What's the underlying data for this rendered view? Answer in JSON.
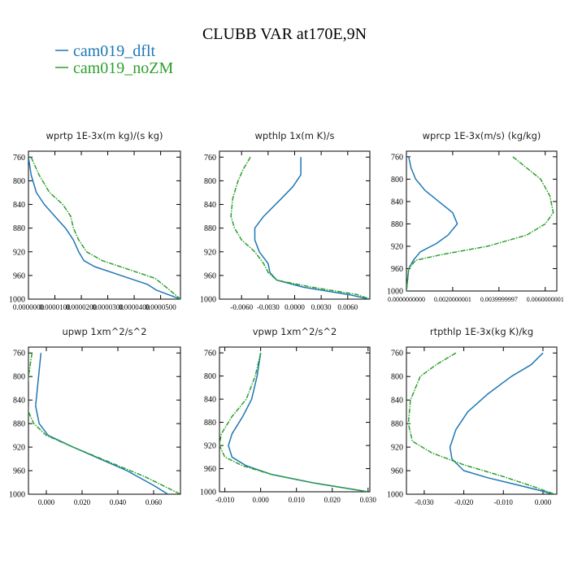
{
  "page": {
    "title": "CLUBB VAR at170E,9N"
  },
  "legend": [
    {
      "name": "cam019_dflt",
      "color": "#1f77b4"
    },
    {
      "name": "cam019_noZM",
      "color": "#2ca02c"
    }
  ],
  "chart_data": [
    {
      "type": "line",
      "title": "wprtp  1E-3x(m kg)/(s kg)",
      "xlim": [
        0.0,
        5.75e-05
      ],
      "ylim": [
        1000,
        750
      ],
      "xticks": [
        0.0,
        1e-05,
        2e-05,
        3e-05,
        4e-05,
        5e-05
      ],
      "xticklabels": [
        "0.0000000",
        "0.0000100",
        "0.0000200",
        "0.0000300",
        "0.0000400",
        "0.0000500"
      ],
      "yticks": [
        760,
        800,
        840,
        880,
        920,
        960,
        1000
      ],
      "series": [
        {
          "name": "cam019_dflt",
          "x": [
            0.0,
            1e-06,
            3e-06,
            6e-06,
            1e-05,
            1.4e-05,
            1.7e-05,
            1.9e-05,
            2.1e-05,
            2.5e-05,
            3.5e-05,
            4.5e-05,
            4.85e-05,
            5.75e-05
          ],
          "y": [
            760,
            790,
            820,
            840,
            860,
            880,
            900,
            920,
            935,
            945,
            960,
            975,
            985,
            1000
          ]
        },
        {
          "name": "cam019_noZM",
          "x": [
            1e-06,
            4e-06,
            8e-06,
            1.3e-05,
            1.6e-05,
            1.7e-05,
            1.9e-05,
            2.2e-05,
            2.8e-05,
            3.8e-05,
            4.8e-05,
            5.35e-05,
            5.75e-05
          ],
          "y": [
            760,
            790,
            820,
            840,
            860,
            880,
            900,
            920,
            935,
            950,
            965,
            985,
            1000
          ]
        }
      ]
    },
    {
      "type": "line",
      "title": "wpthlp  1x(m K)/s",
      "xlim": [
        -0.0085,
        0.0085
      ],
      "ylim": [
        1000,
        750
      ],
      "xticks": [
        -0.006,
        -0.003,
        0.0,
        0.003,
        0.006
      ],
      "xticklabels": [
        "-0.0060",
        "-0.0030",
        "0.0000",
        "0.0030",
        "0.0060"
      ],
      "yticks": [
        760,
        800,
        840,
        880,
        920,
        960,
        1000
      ],
      "series": [
        {
          "name": "cam019_dflt",
          "x": [
            0.0007,
            0.0007,
            -0.0002,
            -0.0015,
            -0.0035,
            -0.0045,
            -0.0045,
            -0.004,
            -0.003,
            -0.0028,
            -0.002,
            0.001,
            0.006,
            0.0085
          ],
          "y": [
            760,
            790,
            810,
            830,
            860,
            880,
            900,
            920,
            940,
            955,
            968,
            980,
            992,
            1000
          ]
        },
        {
          "name": "cam019_noZM",
          "x": [
            -0.005,
            -0.0058,
            -0.0064,
            -0.007,
            -0.0072,
            -0.0068,
            -0.006,
            -0.0045,
            -0.0035,
            -0.003,
            -0.002,
            0.002,
            0.007,
            0.0085
          ],
          "y": [
            760,
            780,
            800,
            830,
            860,
            880,
            900,
            920,
            940,
            955,
            968,
            980,
            992,
            1000
          ]
        }
      ]
    },
    {
      "type": "line",
      "title": "wprcp  1E-3x(m/s) (kg/kg)",
      "xlim": [
        0.0,
        0.0065
      ],
      "ylim": [
        1000,
        750
      ],
      "xticks": [
        0.0,
        0.0020000001,
        0.0039999997,
        0.0060000001
      ],
      "xticklabels": [
        "0.0000000000",
        "0.0020000001",
        "0.0039999997",
        "0.0060000001"
      ],
      "yticks": [
        760,
        800,
        840,
        880,
        920,
        960,
        1000
      ],
      "series": [
        {
          "name": "cam019_dflt",
          "x": [
            0.0001,
            0.0002,
            0.0004,
            0.0008,
            0.0014,
            0.002,
            0.0022,
            0.0018,
            0.0013,
            0.0006,
            0.0003,
            0.0001,
            5e-05,
            0.0
          ],
          "y": [
            760,
            780,
            800,
            820,
            840,
            860,
            880,
            900,
            915,
            930,
            945,
            960,
            980,
            1000
          ]
        },
        {
          "name": "cam019_noZM",
          "x": [
            0.0046,
            0.0052,
            0.0058,
            0.0062,
            0.00635,
            0.006,
            0.0052,
            0.0035,
            0.0015,
            0.0004,
            0.0001,
            5e-05,
            0.0
          ],
          "y": [
            760,
            780,
            800,
            830,
            860,
            880,
            900,
            920,
            935,
            945,
            960,
            980,
            1000
          ]
        }
      ]
    },
    {
      "type": "line",
      "title": "upwp  1xm^2/s^2",
      "xlim": [
        -0.01,
        0.075
      ],
      "ylim": [
        1000,
        750
      ],
      "xticks": [
        0.0,
        0.02,
        0.04,
        0.06
      ],
      "xticklabels": [
        "0.000",
        "0.020",
        "0.040",
        "0.060"
      ],
      "yticks": [
        760,
        800,
        840,
        880,
        920,
        960,
        1000
      ],
      "series": [
        {
          "name": "cam019_dflt",
          "x": [
            -0.003,
            -0.004,
            -0.005,
            -0.006,
            -0.004,
            0.001,
            0.015,
            0.03,
            0.045,
            0.06,
            0.068
          ],
          "y": [
            760,
            790,
            820,
            850,
            880,
            900,
            920,
            940,
            960,
            985,
            1000
          ]
        },
        {
          "name": "cam019_noZM",
          "x": [
            -0.008,
            -0.01,
            -0.011,
            -0.01,
            -0.007,
            0.0,
            0.015,
            0.035,
            0.055,
            0.075
          ],
          "y": [
            760,
            800,
            830,
            860,
            880,
            900,
            920,
            945,
            970,
            1000
          ]
        }
      ]
    },
    {
      "type": "line",
      "title": "vpwp  1xm^2/s^2",
      "xlim": [
        -0.0115,
        0.0305
      ],
      "ylim": [
        1000,
        750
      ],
      "xticks": [
        -0.01,
        0.0,
        0.01,
        0.02,
        0.03
      ],
      "xticklabels": [
        "-0.010",
        "0.000",
        "0.010",
        "0.020",
        "0.030"
      ],
      "yticks": [
        760,
        800,
        840,
        880,
        920,
        960,
        1000
      ],
      "series": [
        {
          "name": "cam019_dflt",
          "x": [
            0.0,
            -0.001,
            -0.0025,
            -0.005,
            -0.008,
            -0.009,
            -0.008,
            -0.004,
            0.003,
            0.015,
            0.03
          ],
          "y": [
            760,
            800,
            840,
            870,
            900,
            920,
            940,
            955,
            970,
            985,
            1000
          ]
        },
        {
          "name": "cam019_noZM",
          "x": [
            0.0,
            -0.0015,
            -0.004,
            -0.008,
            -0.011,
            -0.0115,
            -0.01,
            -0.005,
            0.003,
            0.015,
            0.03
          ],
          "y": [
            760,
            800,
            840,
            870,
            900,
            920,
            940,
            955,
            970,
            985,
            1000
          ]
        }
      ]
    },
    {
      "type": "line",
      "title": "rtpthlp  1E-3x(kg K)/kg",
      "xlim": [
        -0.0345,
        0.0035
      ],
      "ylim": [
        1000,
        750
      ],
      "xticks": [
        -0.03,
        -0.02,
        -0.01,
        0.0
      ],
      "xticklabels": [
        "-0.030",
        "-0.020",
        "-0.010",
        "0.000"
      ],
      "yticks": [
        760,
        800,
        840,
        880,
        920,
        960,
        1000
      ],
      "series": [
        {
          "name": "cam019_dflt",
          "x": [
            0.0,
            -0.003,
            -0.008,
            -0.014,
            -0.019,
            -0.022,
            -0.0235,
            -0.023,
            -0.02,
            -0.014,
            -0.006,
            0.0,
            0.0025
          ],
          "y": [
            760,
            780,
            800,
            830,
            860,
            890,
            920,
            940,
            960,
            972,
            985,
            995,
            1000
          ]
        },
        {
          "name": "cam019_noZM",
          "x": [
            -0.022,
            -0.027,
            -0.031,
            -0.0335,
            -0.034,
            -0.033,
            -0.028,
            -0.02,
            -0.01,
            -0.002,
            0.003
          ],
          "y": [
            760,
            780,
            800,
            840,
            880,
            910,
            930,
            950,
            970,
            988,
            1000
          ]
        }
      ]
    }
  ]
}
